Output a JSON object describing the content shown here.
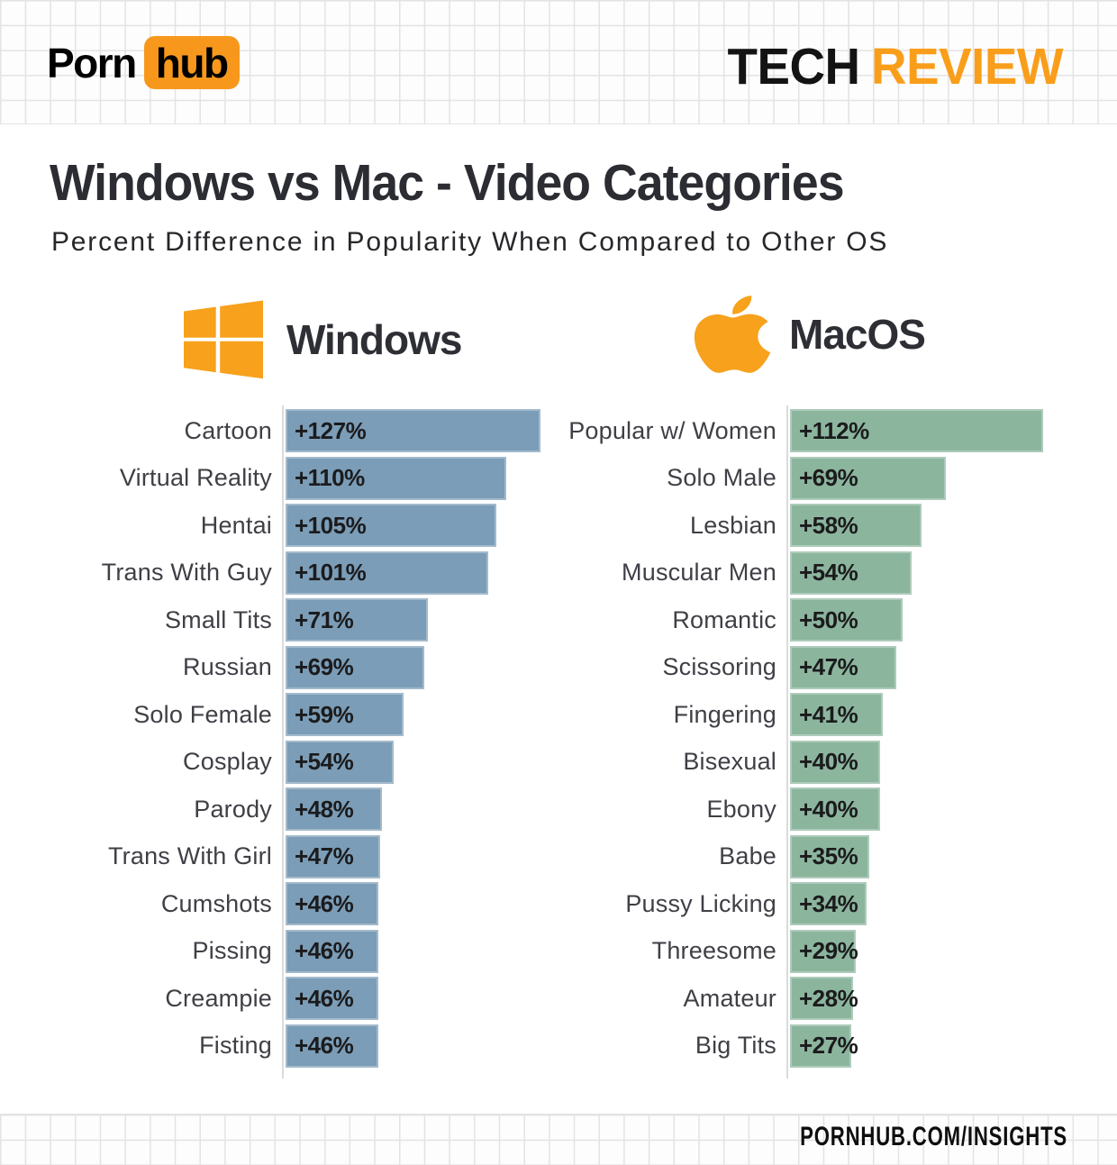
{
  "brand": {
    "logo_porn": "Porn",
    "logo_hub": "hub",
    "masthead_tech": "TECH",
    "masthead_review": "REVIEW",
    "footer": "PORNHUB.COM/INSIGHTS"
  },
  "title": "Windows vs Mac - Video Categories",
  "subtitle": "Percent Difference in Popularity When Compared to Other OS",
  "colors": {
    "orange": "#F7981D",
    "windows_bar": "#7B9DB7",
    "mac_bar": "#8CB59E",
    "axis": "#DBDBDB",
    "title_text": "#2C2D33",
    "category_text": "#3F3F46",
    "value_text": "#1B1B1D"
  },
  "chart_data": [
    {
      "type": "bar",
      "orientation": "horizontal",
      "group": "Windows",
      "icon": "windows-logo-icon",
      "bar_color": "#7B9DB7",
      "categories": [
        "Cartoon",
        "Virtual Reality",
        "Hentai",
        "Trans With Guy",
        "Small Tits",
        "Russian",
        "Solo Female",
        "Cosplay",
        "Parody",
        "Trans With Girl",
        "Cumshots",
        "Pissing",
        "Creampie",
        "Fisting"
      ],
      "values": [
        127,
        110,
        105,
        101,
        71,
        69,
        59,
        54,
        48,
        47,
        46,
        46,
        46,
        46
      ],
      "value_labels": [
        "+127%",
        "+110%",
        "+105%",
        "+101%",
        "+71%",
        "+69%",
        "+59%",
        "+54%",
        "+48%",
        "+47%",
        "+46%",
        "+46%",
        "+46%",
        "+46%"
      ],
      "xlim": [
        0,
        130
      ],
      "legend": "none",
      "grid": "off"
    },
    {
      "type": "bar",
      "orientation": "horizontal",
      "group": "MacOS",
      "icon": "apple-logo-icon",
      "bar_color": "#8CB59E",
      "categories": [
        "Popular w/ Women",
        "Solo Male",
        "Lesbian",
        "Muscular Men",
        "Romantic",
        "Scissoring",
        "Fingering",
        "Bisexual",
        "Ebony",
        "Babe",
        "Pussy Licking",
        "Threesome",
        "Amateur",
        "Big Tits"
      ],
      "values": [
        112,
        69,
        58,
        54,
        50,
        47,
        41,
        40,
        40,
        35,
        34,
        29,
        28,
        27
      ],
      "value_labels": [
        "+112%",
        "+69%",
        "+58%",
        "+54%",
        "+50%",
        "+47%",
        "+41%",
        "+40%",
        "+40%",
        "+35%",
        "+34%",
        "+29%",
        "+28%",
        "+27%"
      ],
      "xlim": [
        0,
        115
      ],
      "legend": "none",
      "grid": "off"
    }
  ]
}
